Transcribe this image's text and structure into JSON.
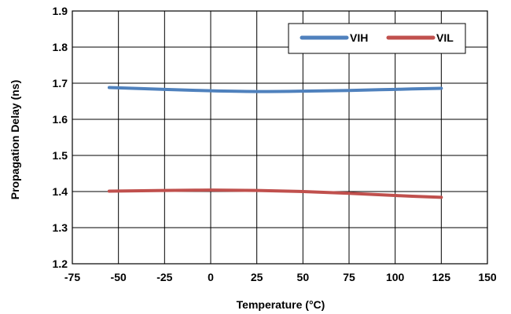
{
  "chart_data": {
    "type": "line",
    "xlabel": "Temperature (°C)",
    "ylabel": "Propagation Delay (ns)",
    "xlim": [
      -75,
      150
    ],
    "ylim": [
      1.2,
      1.9
    ],
    "xticks": [
      "-75",
      "-50",
      "-25",
      "0",
      "25",
      "50",
      "75",
      "100",
      "125",
      "150"
    ],
    "yticks": [
      "1.2",
      "1.3",
      "1.4",
      "1.5",
      "1.6",
      "1.7",
      "1.8",
      "1.9"
    ],
    "grid": true,
    "legend_position": "top-right",
    "series": [
      {
        "name": "VIH",
        "color": "#4F81BD",
        "x": [
          -55,
          -25,
          0,
          25,
          50,
          75,
          100,
          125
        ],
        "y": [
          1.688,
          1.683,
          1.679,
          1.677,
          1.678,
          1.68,
          1.683,
          1.686
        ]
      },
      {
        "name": "VIL",
        "color": "#C0504D",
        "x": [
          -55,
          -25,
          0,
          25,
          50,
          75,
          100,
          125
        ],
        "y": [
          1.401,
          1.403,
          1.404,
          1.403,
          1.4,
          1.395,
          1.389,
          1.384
        ]
      }
    ]
  }
}
